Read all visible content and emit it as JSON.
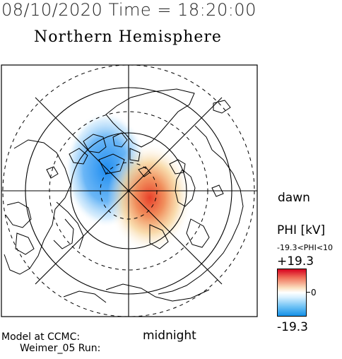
{
  "header": {
    "datetime": "08/10/2020 Time = 18:20:00",
    "hemisphere": "Northern Hemisphere"
  },
  "map": {
    "labels": {
      "right": "dawn",
      "bottom": "midnight"
    },
    "pattern": {
      "negative_cell": "blue (dusk side, upper-left)",
      "positive_cell": "red (dawn side, lower-right)"
    }
  },
  "colorbar": {
    "title": "PHI [kV]",
    "range_text": "-19.3<PHI<10",
    "max_label": "+19.3",
    "zero_label": "0",
    "min_label": "-19.3",
    "colors": {
      "max": "#d6001e",
      "zero": "#ffffff",
      "min": "#1390e8"
    }
  },
  "footer": {
    "line1": "Model at CCMC:",
    "line2": "Weimer_05 Run:"
  }
}
